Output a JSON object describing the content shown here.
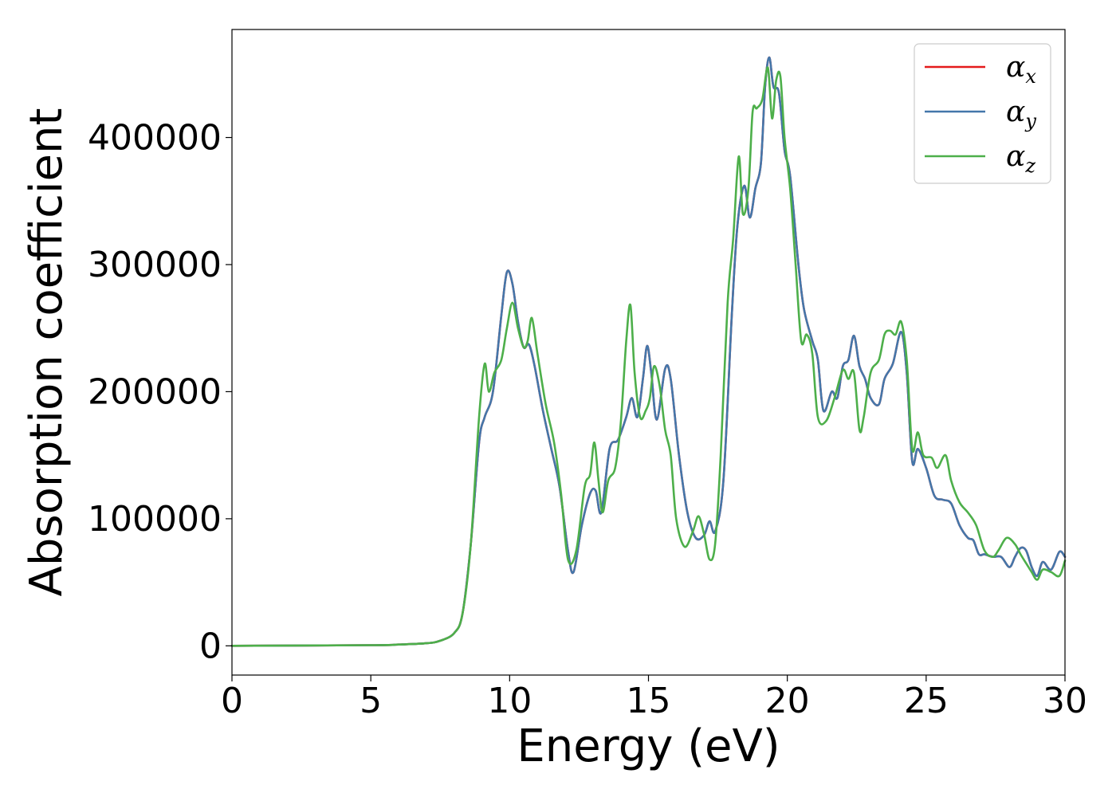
{
  "chart_data": {
    "type": "line",
    "xlabel": "Energy (eV)",
    "ylabel": "Absorption coefficient",
    "xlim": [
      0,
      30
    ],
    "ylim": [
      -23000,
      485000
    ],
    "xticks": [
      0,
      5,
      10,
      15,
      20,
      25,
      30
    ],
    "yticks": [
      0,
      100000,
      200000,
      300000,
      400000
    ],
    "grid": false,
    "legend_position": "top-right",
    "series": [
      {
        "name": "α_x",
        "symbol": "α",
        "subscript": "x",
        "color": "#e41a1c",
        "x": [
          0,
          5,
          6,
          7,
          7.5,
          8,
          8.3,
          8.6,
          8.9,
          9.1,
          9.4,
          9.7,
          9.9,
          10.1,
          10.3,
          10.5,
          10.7,
          10.9,
          11.2,
          11.5,
          11.8,
          12.1,
          12.3,
          12.6,
          12.9,
          13.1,
          13.3,
          13.6,
          13.9,
          14.2,
          14.4,
          14.6,
          14.8,
          14.95,
          15.1,
          15.3,
          15.6,
          15.8,
          16.1,
          16.4,
          16.7,
          17.0,
          17.2,
          17.4,
          17.7,
          18.0,
          18.2,
          18.45,
          18.65,
          18.85,
          19.05,
          19.2,
          19.35,
          19.5,
          19.7,
          19.9,
          20.1,
          20.4,
          20.6,
          20.9,
          21.1,
          21.3,
          21.6,
          21.8,
          22.0,
          22.2,
          22.4,
          22.6,
          22.8,
          23.0,
          23.3,
          23.5,
          23.8,
          24.1,
          24.3,
          24.5,
          24.7,
          25.0,
          25.3,
          25.6,
          25.9,
          26.2,
          26.5,
          26.7,
          26.9,
          27.1,
          27.4,
          27.7,
          28.0,
          28.2,
          28.4,
          28.6,
          28.8,
          29.0,
          29.2,
          29.5,
          29.8,
          30.0
        ],
        "y": [
          0,
          500,
          1000,
          2000,
          4000,
          10000,
          25000,
          80000,
          160000,
          180000,
          200000,
          260000,
          294000,
          285000,
          255000,
          235000,
          237000,
          220000,
          185000,
          155000,
          125000,
          75000,
          58000,
          95000,
          120000,
          122000,
          105000,
          155000,
          162000,
          180000,
          195000,
          180000,
          210000,
          236000,
          215000,
          178000,
          218000,
          210000,
          150000,
          105000,
          85000,
          87000,
          98000,
          90000,
          130000,
          260000,
          330000,
          362000,
          337000,
          360000,
          380000,
          440000,
          463000,
          440000,
          435000,
          390000,
          370000,
          300000,
          265000,
          240000,
          225000,
          185000,
          200000,
          195000,
          220000,
          225000,
          244000,
          220000,
          210000,
          195000,
          190000,
          210000,
          222000,
          247000,
          215000,
          145000,
          155000,
          140000,
          118000,
          115000,
          112000,
          95000,
          85000,
          83000,
          72000,
          72000,
          70000,
          70000,
          62000,
          70000,
          77000,
          75000,
          62000,
          55000,
          66000,
          60000,
          74000,
          70000
        ]
      },
      {
        "name": "α_y",
        "symbol": "α",
        "subscript": "y",
        "color": "#4477aa",
        "x": [
          0,
          5,
          6,
          7,
          7.5,
          8,
          8.3,
          8.6,
          8.9,
          9.1,
          9.4,
          9.7,
          9.9,
          10.1,
          10.3,
          10.5,
          10.7,
          10.9,
          11.2,
          11.5,
          11.8,
          12.1,
          12.3,
          12.6,
          12.9,
          13.1,
          13.3,
          13.6,
          13.9,
          14.2,
          14.4,
          14.6,
          14.8,
          14.95,
          15.1,
          15.3,
          15.6,
          15.8,
          16.1,
          16.4,
          16.7,
          17.0,
          17.2,
          17.4,
          17.7,
          18.0,
          18.2,
          18.45,
          18.65,
          18.85,
          19.05,
          19.2,
          19.35,
          19.5,
          19.7,
          19.9,
          20.1,
          20.4,
          20.6,
          20.9,
          21.1,
          21.3,
          21.6,
          21.8,
          22.0,
          22.2,
          22.4,
          22.6,
          22.8,
          23.0,
          23.3,
          23.5,
          23.8,
          24.1,
          24.3,
          24.5,
          24.7,
          25.0,
          25.3,
          25.6,
          25.9,
          26.2,
          26.5,
          26.7,
          26.9,
          27.1,
          27.4,
          27.7,
          28.0,
          28.2,
          28.4,
          28.6,
          28.8,
          29.0,
          29.2,
          29.5,
          29.8,
          30.0
        ],
        "y": [
          0,
          500,
          1000,
          2000,
          4000,
          10000,
          25000,
          80000,
          160000,
          180000,
          200000,
          260000,
          294000,
          285000,
          255000,
          235000,
          237000,
          220000,
          185000,
          155000,
          125000,
          75000,
          58000,
          95000,
          120000,
          122000,
          105000,
          155000,
          162000,
          180000,
          195000,
          180000,
          210000,
          236000,
          215000,
          178000,
          218000,
          210000,
          150000,
          105000,
          85000,
          87000,
          98000,
          90000,
          130000,
          260000,
          330000,
          362000,
          337000,
          360000,
          380000,
          440000,
          463000,
          440000,
          435000,
          390000,
          370000,
          300000,
          265000,
          240000,
          225000,
          185000,
          200000,
          195000,
          220000,
          225000,
          244000,
          220000,
          210000,
          195000,
          190000,
          210000,
          222000,
          247000,
          215000,
          145000,
          155000,
          140000,
          118000,
          115000,
          112000,
          95000,
          85000,
          83000,
          72000,
          72000,
          70000,
          70000,
          62000,
          70000,
          77000,
          75000,
          62000,
          55000,
          66000,
          60000,
          74000,
          70000
        ]
      },
      {
        "name": "α_z",
        "symbol": "α",
        "subscript": "z",
        "color": "#4daf4a",
        "x": [
          0,
          5,
          6,
          7,
          7.5,
          8,
          8.3,
          8.6,
          8.9,
          9.1,
          9.25,
          9.45,
          9.7,
          9.9,
          10.1,
          10.3,
          10.5,
          10.65,
          10.8,
          11.0,
          11.3,
          11.6,
          11.85,
          12.1,
          12.4,
          12.7,
          12.9,
          13.05,
          13.2,
          13.35,
          13.55,
          13.8,
          14.0,
          14.2,
          14.35,
          14.5,
          14.7,
          14.9,
          15.05,
          15.2,
          15.4,
          15.6,
          15.8,
          16.0,
          16.3,
          16.6,
          16.8,
          17.0,
          17.2,
          17.4,
          17.6,
          17.85,
          18.05,
          18.25,
          18.4,
          18.6,
          18.75,
          18.9,
          19.1,
          19.3,
          19.45,
          19.6,
          19.75,
          19.9,
          20.1,
          20.3,
          20.5,
          20.7,
          20.9,
          21.1,
          21.4,
          21.7,
          22.0,
          22.2,
          22.4,
          22.6,
          22.75,
          23.0,
          23.3,
          23.5,
          23.7,
          23.9,
          24.1,
          24.3,
          24.5,
          24.7,
          24.9,
          25.2,
          25.4,
          25.7,
          25.9,
          26.2,
          26.5,
          26.8,
          27.1,
          27.4,
          27.6,
          27.9,
          28.2,
          28.4,
          28.6,
          28.8,
          29.0,
          29.2,
          29.5,
          29.8,
          30.0
        ],
        "y": [
          0,
          500,
          1000,
          2000,
          4000,
          10000,
          25000,
          80000,
          180000,
          222000,
          200000,
          215000,
          225000,
          250000,
          270000,
          250000,
          235000,
          240000,
          258000,
          230000,
          190000,
          160000,
          120000,
          68000,
          75000,
          125000,
          135000,
          160000,
          130000,
          105000,
          130000,
          140000,
          175000,
          240000,
          268000,
          215000,
          180000,
          185000,
          195000,
          220000,
          205000,
          170000,
          150000,
          100000,
          78000,
          90000,
          102000,
          88000,
          68000,
          80000,
          150000,
          270000,
          320000,
          385000,
          340000,
          360000,
          420000,
          423000,
          430000,
          455000,
          415000,
          445000,
          448000,
          400000,
          360000,
          300000,
          240000,
          245000,
          230000,
          180000,
          177000,
          195000,
          217000,
          210000,
          215000,
          170000,
          180000,
          215000,
          225000,
          245000,
          248000,
          245000,
          255000,
          225000,
          155000,
          168000,
          150000,
          148000,
          140000,
          150000,
          130000,
          113000,
          105000,
          95000,
          75000,
          70000,
          75000,
          85000,
          80000,
          72000,
          65000,
          58000,
          52000,
          60000,
          58000,
          55000,
          67000
        ]
      }
    ]
  }
}
